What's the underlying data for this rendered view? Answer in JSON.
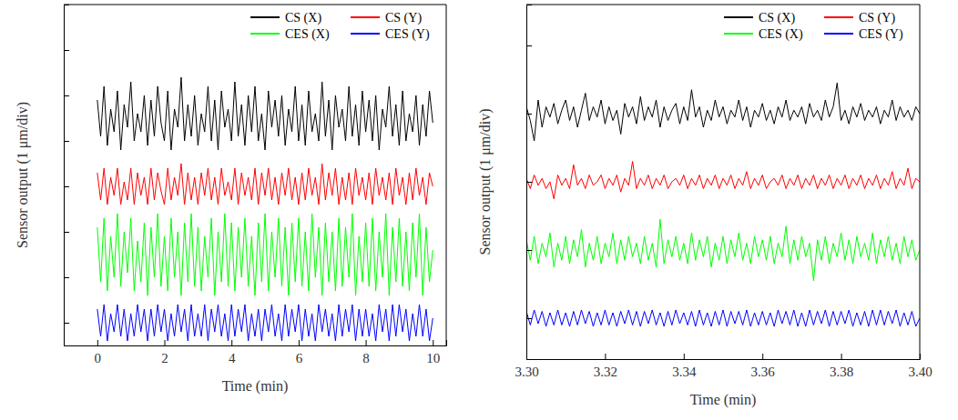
{
  "chart_data": [
    {
      "type": "line",
      "x_label": "Time (min)",
      "y_label": "Sensor output (1 μm/div)",
      "xlim": [
        -1,
        10.4
      ],
      "xticks": [
        0,
        2,
        4,
        6,
        8,
        10
      ],
      "ylim": [
        -0.5,
        7.0
      ],
      "yticks": [
        0,
        1,
        2,
        3,
        4,
        5,
        6
      ],
      "tick_labels": "x",
      "grid": false,
      "legend": "upper right",
      "x": [
        0,
        0.1,
        0.2,
        0.3,
        0.4,
        0.5,
        0.6,
        0.7,
        0.8,
        0.9,
        1,
        1.1,
        1.2,
        1.3,
        1.4,
        1.5,
        1.6,
        1.7,
        1.8,
        1.9,
        2,
        2.1,
        2.2,
        2.3,
        2.4,
        2.5,
        2.6,
        2.7,
        2.8,
        2.9,
        3,
        3.1,
        3.2,
        3.3,
        3.4,
        3.5,
        3.6,
        3.7,
        3.8,
        3.9,
        4,
        4.1,
        4.2,
        4.3,
        4.4,
        4.5,
        4.6,
        4.7,
        4.8,
        4.9,
        5,
        5.1,
        5.2,
        5.3,
        5.4,
        5.5,
        5.6,
        5.7,
        5.8,
        5.9,
        6,
        6.1,
        6.2,
        6.3,
        6.4,
        6.5,
        6.6,
        6.7,
        6.8,
        6.9,
        7,
        7.1,
        7.2,
        7.3,
        7.4,
        7.5,
        7.6,
        7.7,
        7.8,
        7.9,
        8,
        8.1,
        8.2,
        8.3,
        8.4,
        8.5,
        8.6,
        8.7,
        8.8,
        8.9,
        9,
        9.1,
        9.2,
        9.3,
        9.4,
        9.5,
        9.6,
        9.7,
        9.8,
        9.9,
        10
      ],
      "series": [
        {
          "name": "CS (X)",
          "color": "#000000",
          "values": [
            4.9,
            4.1,
            5.2,
            3.9,
            4.7,
            4.2,
            5.1,
            3.8,
            4.8,
            4.3,
            5.3,
            4.0,
            4.6,
            4.2,
            5.0,
            3.9,
            4.9,
            4.1,
            5.2,
            4.4,
            4.0,
            5.1,
            3.8,
            4.7,
            4.3,
            5.4,
            4.0,
            4.8,
            4.1,
            5.0,
            3.9,
            4.6,
            4.2,
            5.2,
            4.0,
            4.9,
            3.8,
            5.1,
            4.3,
            4.7,
            4.0,
            5.3,
            4.1,
            4.8,
            3.9,
            5.0,
            4.2,
            5.2,
            4.0,
            4.6,
            3.8,
            5.1,
            4.3,
            4.9,
            4.1,
            5.0,
            3.9,
            4.7,
            4.2,
            5.2,
            4.0,
            4.8,
            3.9,
            5.1,
            4.2,
            4.6,
            4.0,
            5.3,
            4.1,
            4.9,
            3.8,
            5.0,
            4.3,
            4.7,
            4.0,
            5.2,
            4.1,
            4.8,
            3.9,
            5.1,
            4.2,
            4.9,
            4.0,
            5.0,
            3.8,
            4.7,
            4.3,
            5.2,
            4.1,
            4.8,
            3.9,
            5.1,
            4.0,
            4.6,
            4.2,
            5.0,
            3.9,
            4.8,
            4.1,
            5.1,
            4.4
          ]
        },
        {
          "name": "CS (Y)",
          "color": "#ff0000",
          "values": [
            3.3,
            2.7,
            3.4,
            2.6,
            3.2,
            2.8,
            3.4,
            2.6,
            3.1,
            2.7,
            3.4,
            2.6,
            3.3,
            2.8,
            3.2,
            2.6,
            3.4,
            2.7,
            3.3,
            2.9,
            2.6,
            3.4,
            2.7,
            3.2,
            2.8,
            3.5,
            2.6,
            3.3,
            2.7,
            3.2,
            2.6,
            3.3,
            2.8,
            3.4,
            2.7,
            3.2,
            2.6,
            3.4,
            2.8,
            3.1,
            2.7,
            3.4,
            2.6,
            3.3,
            2.8,
            3.2,
            2.7,
            3.4,
            2.6,
            3.3,
            2.8,
            3.4,
            2.7,
            3.2,
            2.6,
            3.3,
            2.8,
            3.4,
            2.7,
            3.2,
            2.6,
            3.3,
            2.7,
            3.4,
            2.8,
            3.2,
            2.6,
            3.5,
            2.7,
            3.3,
            2.8,
            3.4,
            2.6,
            3.2,
            2.7,
            3.3,
            2.6,
            3.4,
            2.8,
            3.2,
            2.7,
            3.3,
            2.6,
            3.4,
            2.8,
            3.2,
            2.7,
            3.3,
            2.6,
            3.4,
            2.8,
            3.2,
            2.6,
            3.3,
            2.7,
            3.4,
            2.8,
            3.2,
            2.6,
            3.3,
            3.0
          ]
        },
        {
          "name": "CES (X)",
          "color": "#00ff00",
          "values": [
            2.1,
            0.9,
            2.3,
            0.7,
            1.9,
            1.0,
            2.4,
            0.8,
            2.0,
            1.1,
            2.3,
            0.7,
            1.8,
            0.9,
            2.2,
            0.6,
            2.1,
            1.0,
            2.4,
            0.8,
            1.9,
            0.7,
            2.3,
            1.0,
            2.0,
            0.6,
            2.2,
            0.9,
            2.4,
            0.8,
            2.1,
            0.7,
            1.9,
            1.0,
            2.3,
            0.6,
            2.0,
            0.9,
            2.4,
            0.8,
            2.2,
            0.7,
            2.1,
            1.0,
            2.3,
            0.8,
            1.9,
            0.6,
            2.2,
            0.9,
            2.4,
            0.7,
            2.0,
            1.0,
            2.3,
            0.8,
            2.1,
            0.6,
            2.2,
            0.9,
            2.3,
            0.8,
            2.0,
            0.7,
            2.4,
            1.0,
            2.1,
            0.6,
            2.2,
            0.9,
            2.0,
            0.7,
            2.3,
            0.8,
            2.1,
            1.0,
            2.4,
            0.6,
            1.9,
            0.9,
            2.2,
            0.8,
            2.3,
            0.7,
            2.0,
            1.0,
            2.4,
            0.6,
            2.1,
            0.9,
            2.3,
            0.8,
            2.0,
            0.7,
            2.2,
            1.0,
            2.4,
            0.6,
            2.1,
            0.9,
            1.6
          ]
        },
        {
          "name": "CES (Y)",
          "color": "#0000ff",
          "values": [
            0.3,
            -0.3,
            0.4,
            -0.4,
            0.2,
            -0.2,
            0.4,
            -0.3,
            0.3,
            -0.4,
            0.2,
            -0.3,
            0.4,
            -0.2,
            0.3,
            -0.4,
            0.3,
            -0.3,
            0.4,
            -0.2,
            0.3,
            -0.4,
            0.2,
            -0.3,
            0.4,
            -0.2,
            0.3,
            -0.4,
            0.4,
            -0.3,
            0.2,
            -0.3,
            0.4,
            -0.4,
            0.3,
            -0.2,
            0.4,
            -0.3,
            0.2,
            -0.4,
            0.4,
            -0.3,
            0.3,
            -0.2,
            0.4,
            -0.4,
            0.2,
            -0.3,
            0.3,
            -0.4,
            0.3,
            -0.2,
            0.4,
            -0.3,
            0.2,
            -0.4,
            0.4,
            -0.3,
            0.3,
            -0.2,
            0.4,
            -0.4,
            0.3,
            -0.3,
            0.2,
            -0.4,
            0.4,
            -0.2,
            0.3,
            -0.3,
            0.2,
            -0.4,
            0.4,
            -0.3,
            0.3,
            -0.2,
            0.4,
            -0.4,
            0.3,
            -0.3,
            0.3,
            -0.3,
            0.2,
            -0.4,
            0.4,
            -0.2,
            0.3,
            -0.4,
            0.4,
            -0.3,
            0.4,
            -0.2,
            0.3,
            -0.4,
            0.2,
            -0.3,
            0.4,
            -0.3,
            0.3,
            -0.4,
            0.1
          ]
        }
      ]
    },
    {
      "type": "line",
      "x_label": "Time (min)",
      "y_label": "Sensor output (1 μm/div)",
      "xlim": [
        3.3,
        3.4
      ],
      "xticks": [
        {
          "value": 3.3,
          "label": "3.30"
        },
        3.32,
        3.34,
        3.36,
        3.38,
        {
          "value": 3.4,
          "label": "3.40"
        }
      ],
      "ylim": [
        -0.6,
        4.6
      ],
      "yticks": [
        0,
        1,
        2,
        3,
        4
      ],
      "tick_labels": "x",
      "grid": false,
      "legend": "upper right",
      "x": [
        3.3,
        3.301,
        3.302,
        3.303,
        3.304,
        3.305,
        3.306,
        3.307,
        3.308,
        3.309,
        3.31,
        3.311,
        3.312,
        3.313,
        3.314,
        3.315,
        3.316,
        3.317,
        3.318,
        3.319,
        3.32,
        3.321,
        3.322,
        3.323,
        3.324,
        3.325,
        3.326,
        3.327,
        3.328,
        3.329,
        3.33,
        3.331,
        3.332,
        3.333,
        3.334,
        3.335,
        3.336,
        3.337,
        3.338,
        3.339,
        3.34,
        3.341,
        3.342,
        3.343,
        3.344,
        3.345,
        3.346,
        3.347,
        3.348,
        3.349,
        3.35,
        3.351,
        3.352,
        3.353,
        3.354,
        3.355,
        3.356,
        3.357,
        3.358,
        3.359,
        3.36,
        3.361,
        3.362,
        3.363,
        3.364,
        3.365,
        3.366,
        3.367,
        3.368,
        3.369,
        3.37,
        3.371,
        3.372,
        3.373,
        3.374,
        3.375,
        3.376,
        3.377,
        3.378,
        3.379,
        3.38,
        3.381,
        3.382,
        3.383,
        3.384,
        3.385,
        3.386,
        3.387,
        3.388,
        3.389,
        3.39,
        3.391,
        3.392,
        3.393,
        3.394,
        3.395,
        3.396,
        3.397,
        3.398,
        3.399,
        3.4
      ],
      "series": [
        {
          "name": "CS (X)",
          "color": "#000000",
          "values": [
            3.1,
            2.9,
            2.6,
            3.2,
            2.8,
            3.1,
            2.95,
            3.15,
            2.85,
            3.05,
            3.2,
            2.9,
            3.1,
            2.8,
            3.05,
            3.3,
            2.9,
            3.1,
            2.95,
            3.2,
            2.85,
            3.1,
            2.9,
            3.05,
            2.7,
            3.15,
            2.95,
            3.1,
            2.85,
            3.25,
            2.9,
            3.1,
            2.95,
            3.2,
            2.8,
            3.1,
            2.9,
            3.05,
            3.15,
            2.85,
            3.1,
            2.9,
            3.35,
            2.95,
            3.1,
            2.8,
            3.05,
            2.9,
            3.2,
            2.95,
            3.1,
            2.85,
            3.05,
            2.95,
            3.2,
            2.9,
            3.1,
            2.8,
            3.05,
            2.95,
            3.15,
            2.9,
            3.05,
            2.85,
            3.1,
            2.95,
            3.2,
            2.9,
            3.05,
            2.95,
            3.1,
            2.85,
            3.15,
            2.95,
            3.05,
            2.9,
            3.2,
            2.95,
            3.1,
            3.45,
            2.9,
            3.05,
            2.85,
            3.1,
            2.95,
            3.15,
            2.9,
            3.05,
            2.95,
            3.1,
            2.85,
            3.05,
            2.95,
            3.2,
            2.9,
            3.1,
            2.95,
            3.05,
            2.9,
            3.1,
            3.0
          ]
        },
        {
          "name": "CS (Y)",
          "color": "#ff0000",
          "values": [
            2.05,
            1.9,
            2.1,
            1.95,
            2.05,
            1.9,
            2.0,
            1.75,
            2.1,
            1.95,
            2.05,
            1.9,
            2.25,
            1.95,
            2.05,
            1.9,
            2.1,
            1.95,
            2.0,
            2.1,
            1.9,
            2.05,
            1.95,
            2.1,
            1.85,
            2.05,
            1.95,
            2.3,
            1.9,
            2.05,
            1.95,
            2.1,
            1.9,
            2.05,
            1.95,
            2.1,
            1.9,
            2.0,
            2.05,
            1.95,
            2.1,
            1.9,
            2.05,
            1.95,
            2.1,
            1.9,
            2.05,
            1.95,
            2.1,
            1.9,
            2.05,
            1.95,
            2.1,
            1.9,
            2.05,
            1.95,
            2.15,
            1.9,
            2.05,
            1.95,
            2.1,
            1.9,
            2.0,
            2.05,
            1.95,
            2.1,
            1.9,
            2.05,
            1.95,
            2.1,
            1.9,
            2.05,
            1.95,
            2.1,
            1.9,
            2.05,
            1.95,
            2.1,
            1.9,
            2.05,
            1.95,
            2.1,
            1.9,
            2.05,
            1.95,
            2.1,
            1.9,
            2.05,
            1.95,
            2.1,
            1.9,
            2.05,
            1.95,
            2.15,
            1.9,
            2.05,
            1.95,
            2.2,
            1.9,
            2.05,
            2.0
          ]
        },
        {
          "name": "CES (X)",
          "color": "#00ff00",
          "values": [
            1.15,
            0.85,
            1.2,
            0.8,
            1.1,
            0.9,
            1.25,
            0.75,
            1.1,
            0.85,
            1.2,
            0.8,
            1.15,
            0.9,
            1.3,
            0.75,
            1.1,
            0.85,
            1.2,
            0.8,
            1.1,
            0.9,
            1.25,
            0.8,
            1.15,
            0.85,
            1.2,
            0.9,
            1.1,
            0.8,
            1.2,
            0.85,
            1.1,
            0.75,
            1.45,
            0.8,
            1.15,
            0.9,
            1.2,
            0.85,
            1.1,
            0.8,
            1.25,
            0.85,
            1.15,
            0.9,
            1.2,
            0.75,
            1.1,
            0.85,
            1.2,
            0.8,
            1.15,
            0.9,
            1.25,
            0.85,
            1.1,
            0.8,
            1.2,
            0.9,
            1.15,
            0.85,
            1.2,
            0.8,
            1.1,
            0.9,
            1.35,
            0.8,
            1.15,
            0.85,
            1.2,
            0.9,
            1.1,
            0.55,
            1.15,
            0.85,
            1.2,
            0.8,
            1.1,
            0.9,
            1.25,
            0.85,
            1.15,
            0.8,
            1.2,
            0.9,
            1.1,
            0.85,
            1.25,
            0.8,
            1.15,
            0.9,
            1.2,
            0.85,
            1.1,
            0.8,
            1.2,
            0.9,
            1.15,
            0.85,
            1.0
          ]
        },
        {
          "name": "CES (Y)",
          "color": "#0000ff",
          "values": [
            0.1,
            -0.1,
            0.12,
            -0.08,
            0.1,
            -0.12,
            0.08,
            -0.1,
            0.12,
            -0.1,
            0.08,
            -0.12,
            0.1,
            -0.1,
            0.12,
            -0.08,
            0.1,
            -0.12,
            0.08,
            -0.1,
            0.12,
            -0.1,
            0.08,
            -0.12,
            0.1,
            -0.08,
            0.12,
            -0.1,
            0.1,
            -0.12,
            0.1,
            -0.08,
            0.12,
            -0.1,
            0.08,
            -0.12,
            0.1,
            -0.1,
            0.12,
            -0.08,
            0.08,
            -0.1,
            0.1,
            -0.12,
            0.12,
            -0.1,
            0.08,
            -0.12,
            0.1,
            -0.1,
            0.12,
            -0.12,
            0.1,
            -0.08,
            0.1,
            -0.1,
            0.12,
            -0.12,
            0.08,
            -0.1,
            0.1,
            -0.1,
            0.08,
            -0.12,
            0.12,
            -0.08,
            0.1,
            -0.1,
            0.12,
            -0.12,
            0.08,
            -0.12,
            0.12,
            -0.1,
            0.1,
            -0.08,
            0.12,
            -0.12,
            0.1,
            -0.1,
            0.1,
            -0.08,
            0.12,
            -0.12,
            0.08,
            -0.1,
            0.1,
            -0.12,
            0.12,
            -0.1,
            0.12,
            -0.1,
            0.1,
            -0.08,
            0.12,
            -0.12,
            0.08,
            -0.1,
            0.1,
            -0.12,
            0.0
          ]
        }
      ]
    }
  ]
}
